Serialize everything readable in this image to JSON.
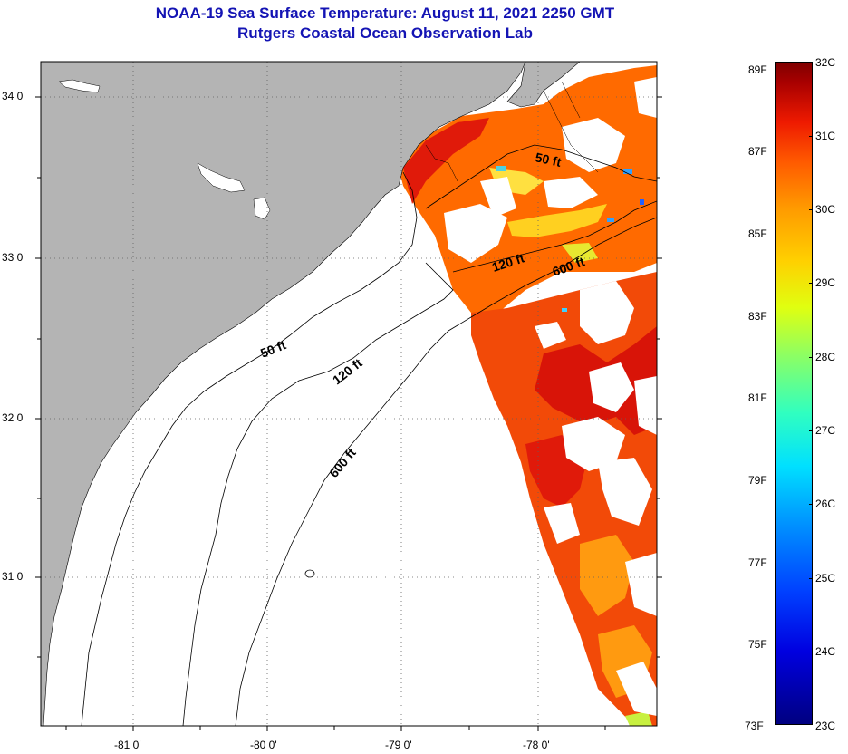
{
  "title": {
    "line1": "NOAA-19 Sea Surface Temperature:  August 11, 2021 2250 GMT",
    "line2": "Rutgers Coastal Ocean Observation Lab"
  },
  "axes": {
    "x_ticks": [
      "-81 0'",
      "-80 0'",
      "-79 0'",
      "-78 0'"
    ],
    "y_ticks": [
      "34 0'",
      "33 0'",
      "32 0'",
      "31 0'"
    ]
  },
  "contours": {
    "near_labels": [
      "50 ft",
      "120 ft",
      "600 ft"
    ],
    "offshore_labels": [
      "50 ft",
      "120 ft",
      "600 ft"
    ]
  },
  "colorbar": {
    "celsius": [
      "32C",
      "31C",
      "30C",
      "29C",
      "28C",
      "27C",
      "26C",
      "25C",
      "24C",
      "23C"
    ],
    "fahrenheit": [
      "89F",
      "87F",
      "85F",
      "83F",
      "81F",
      "79F",
      "77F",
      "75F",
      "73F"
    ]
  },
  "colors": {
    "land": "#b4b4b4",
    "title": "#1414b4",
    "sst_hot": "#e8200a",
    "sst_warm": "#ff6a00",
    "sst_mid": "#ff9a10",
    "sst_cool": "#ffd020"
  }
}
